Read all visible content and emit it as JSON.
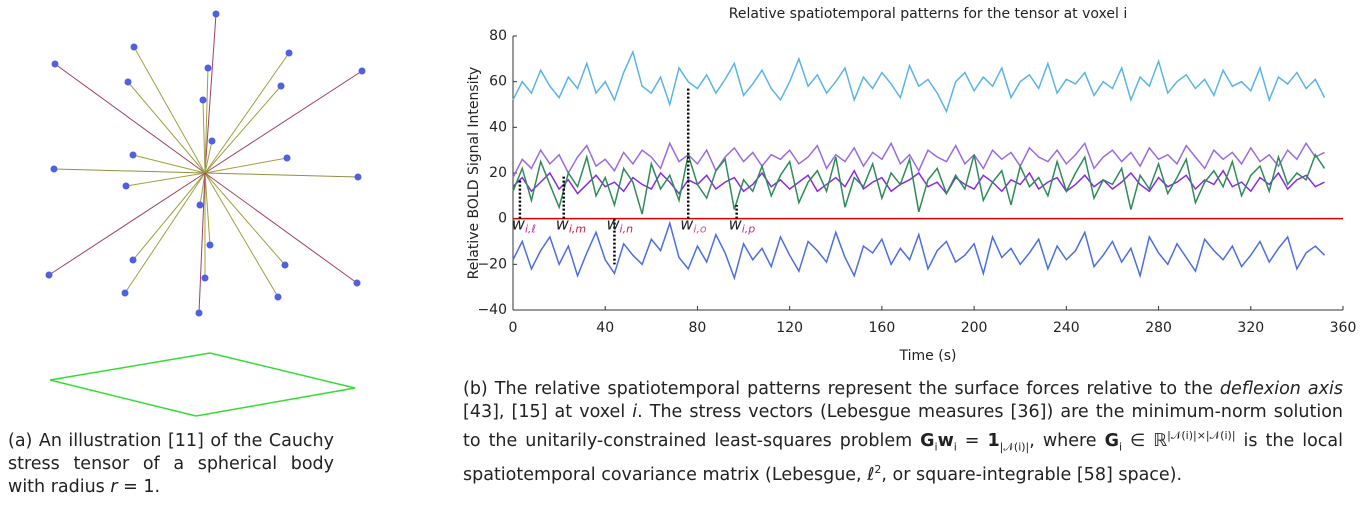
{
  "chart_data": {
    "type": "line",
    "title": "Relative spatiotemporal patterns for the tensor at voxel i",
    "x_label": "Time (s)",
    "y_label": "Relative BOLD Signal Intensity",
    "xlim": [
      0,
      360
    ],
    "ylim": [
      -40,
      80
    ],
    "xticks": [
      0,
      40,
      80,
      120,
      160,
      200,
      240,
      280,
      320,
      360
    ],
    "yticks": [
      {
        "value": -40,
        "label": "−40"
      },
      {
        "value": -20,
        "label": "−20"
      },
      0,
      20,
      40,
      60,
      80
    ],
    "grid": false,
    "zero_line": {
      "y": 0,
      "color": "#e00000"
    },
    "x": [
      0,
      4,
      8,
      12,
      16,
      20,
      24,
      28,
      32,
      36,
      40,
      44,
      48,
      52,
      56,
      60,
      64,
      68,
      72,
      76,
      80,
      84,
      88,
      92,
      96,
      100,
      104,
      108,
      112,
      116,
      120,
      124,
      128,
      132,
      136,
      140,
      144,
      148,
      152,
      156,
      160,
      164,
      168,
      172,
      176,
      180,
      184,
      188,
      192,
      196,
      200,
      204,
      208,
      212,
      216,
      220,
      224,
      228,
      232,
      236,
      240,
      244,
      248,
      252,
      256,
      260,
      264,
      268,
      272,
      276,
      280,
      284,
      288,
      292,
      296,
      300,
      304,
      308,
      312,
      316,
      320,
      324,
      328,
      332,
      336,
      340,
      344,
      348,
      352
    ],
    "series": [
      {
        "color": "#5ab4e8",
        "values": [
          52,
          60,
          55,
          65,
          58,
          53,
          62,
          57,
          68,
          55,
          60,
          52,
          64,
          73,
          58,
          55,
          62,
          50,
          66,
          60,
          57,
          63,
          55,
          61,
          68,
          54,
          59,
          65,
          57,
          52,
          60,
          70,
          58,
          63,
          55,
          60,
          66,
          52,
          62,
          57,
          64,
          59,
          53,
          67,
          58,
          61,
          55,
          47,
          60,
          64,
          56,
          62,
          58,
          66,
          53,
          60,
          63,
          57,
          68,
          55,
          61,
          59,
          64,
          54,
          60,
          57,
          66,
          52,
          62,
          58,
          69,
          55,
          60,
          63,
          57,
          61,
          54,
          65,
          58,
          60,
          56,
          66,
          52,
          62,
          59,
          64,
          57,
          61,
          53
        ]
      },
      {
        "color": "#9b6be3",
        "values": [
          18,
          26,
          22,
          30,
          24,
          28,
          20,
          27,
          32,
          23,
          26,
          21,
          29,
          24,
          30,
          27,
          22,
          33,
          25,
          28,
          24,
          30,
          21,
          27,
          31,
          25,
          29,
          23,
          28,
          26,
          30,
          24,
          27,
          32,
          22,
          28,
          25,
          31,
          23,
          29,
          26,
          33,
          24,
          28,
          21,
          30,
          27,
          25,
          32,
          24,
          28,
          22,
          30,
          26,
          29,
          23,
          31,
          27,
          25,
          30,
          24,
          28,
          33,
          22,
          27,
          30,
          25,
          29,
          23,
          31,
          26,
          28,
          24,
          32,
          27,
          22,
          30,
          26,
          29,
          24,
          31,
          25,
          28,
          23,
          30,
          26,
          33,
          27,
          29
        ]
      },
      {
        "color": "#8a2be2",
        "values": [
          14,
          18,
          12,
          16,
          20,
          13,
          17,
          11,
          15,
          19,
          14,
          16,
          12,
          18,
          15,
          13,
          20,
          16,
          11,
          17,
          15,
          19,
          13,
          16,
          18,
          12,
          15,
          20,
          14,
          17,
          13,
          16,
          19,
          12,
          15,
          18,
          14,
          21,
          13,
          16,
          18,
          12,
          15,
          17,
          20,
          14,
          16,
          11,
          18,
          15,
          13,
          19,
          16,
          12,
          17,
          15,
          20,
          13,
          16,
          18,
          12,
          15,
          19,
          14,
          17,
          13,
          16,
          20,
          15,
          12,
          18,
          14,
          16,
          19,
          13,
          17,
          15,
          21,
          14,
          16,
          12,
          18,
          15,
          20,
          13,
          17,
          19,
          14,
          16
        ]
      },
      {
        "color": "#2e8b57",
        "values": [
          12,
          22,
          8,
          25,
          15,
          5,
          20,
          14,
          27,
          10,
          18,
          6,
          22,
          16,
          2,
          24,
          13,
          19,
          8,
          28,
          15,
          9,
          21,
          26,
          4,
          17,
          12,
          23,
          10,
          19,
          25,
          7,
          16,
          21,
          12,
          27,
          5,
          18,
          14,
          24,
          9,
          20,
          15,
          26,
          3,
          17,
          22,
          11,
          19,
          13,
          28,
          8,
          16,
          21,
          6,
          23,
          14,
          18,
          10,
          25,
          12,
          20,
          27,
          9,
          17,
          15,
          22,
          4,
          19,
          13,
          24,
          11,
          18,
          26,
          7,
          16,
          21,
          14,
          25,
          10,
          19,
          23,
          12,
          27,
          15,
          20,
          17,
          28,
          22
        ]
      },
      {
        "color": "#4a6fe3",
        "values": [
          -18,
          -10,
          -22,
          -14,
          -8,
          -20,
          -12,
          -25,
          -15,
          -6,
          -18,
          -24,
          -11,
          -16,
          -20,
          -9,
          -14,
          -2,
          -17,
          -22,
          -12,
          -19,
          -7,
          -15,
          -26,
          -11,
          -18,
          -13,
          -21,
          -8,
          -16,
          -23,
          -10,
          -14,
          -19,
          -6,
          -17,
          -25,
          -12,
          -15,
          -9,
          -20,
          -13,
          -18,
          -7,
          -22,
          -14,
          -10,
          -19,
          -16,
          -11,
          -24,
          -8,
          -17,
          -13,
          -20,
          -15,
          -9,
          -22,
          -12,
          -18,
          -14,
          -6,
          -21,
          -16,
          -10,
          -19,
          -13,
          -25,
          -8,
          -15,
          -20,
          -11,
          -17,
          -23,
          -9,
          -14,
          -18,
          -12,
          -21,
          -16,
          -10,
          -19,
          -13,
          -8,
          -22,
          -15,
          -12,
          -16
        ]
      }
    ],
    "annotations": [
      {
        "label": "w",
        "subscript": "i,ℓ",
        "x": 3,
        "y": 17,
        "color": "#c0309a"
      },
      {
        "label": "w",
        "subscript": "i,m",
        "x": 22,
        "y": 19,
        "color": "#d02040"
      },
      {
        "label": "w",
        "subscript": "i,n",
        "x": 44,
        "y": -20,
        "color": "#d02040"
      },
      {
        "label": "w",
        "subscript": "i,o",
        "x": 76,
        "y": 57,
        "color": "#e05080"
      },
      {
        "label": "w",
        "subscript": "i,p",
        "x": 97,
        "y": 6,
        "color": "#c0309a"
      }
    ]
  },
  "captions": {
    "a": [
      {
        "text": "(a) An illustration [11] of the Cauchy stress tensor of a spherical body with radius "
      },
      {
        "text": "r",
        "style": "italic"
      },
      {
        "text": " = 1."
      }
    ],
    "b": [
      {
        "text": "(b) The relative spatiotemporal patterns represent the surface forces relative to the "
      },
      {
        "text": "deflexion axis",
        "style": "italic"
      },
      {
        "text": " [43], [15] at voxel "
      },
      {
        "text": "i",
        "style": "italic"
      },
      {
        "text": ". The stress vectors (Lebesgue measures [36]) are the minimum-norm solution to the unitarily-constrained least-squares problem "
      },
      {
        "text": "G",
        "style": "bold"
      },
      {
        "text": "i",
        "style": "sub"
      },
      {
        "text": "w",
        "style": "bold"
      },
      {
        "text": "i",
        "style": "sub"
      },
      {
        "text": " = "
      },
      {
        "text": "1",
        "style": "bold"
      },
      {
        "text": "|𝒩(i)|",
        "style": "sub"
      },
      {
        "text": ", where "
      },
      {
        "text": "G",
        "style": "bold"
      },
      {
        "text": "i",
        "style": "sub"
      },
      {
        "text": " ∈ ℝ"
      },
      {
        "text": "|𝒩(i)|×|𝒩(i)|",
        "style": "sup"
      },
      {
        "text": " is the local spatiotemporal covariance matrix (Lebesgue, "
      },
      {
        "text": "ℓ",
        "style": "italic"
      },
      {
        "text": "2",
        "style": "sup"
      },
      {
        "text": ", or square-integrable [58] space)."
      }
    ]
  }
}
